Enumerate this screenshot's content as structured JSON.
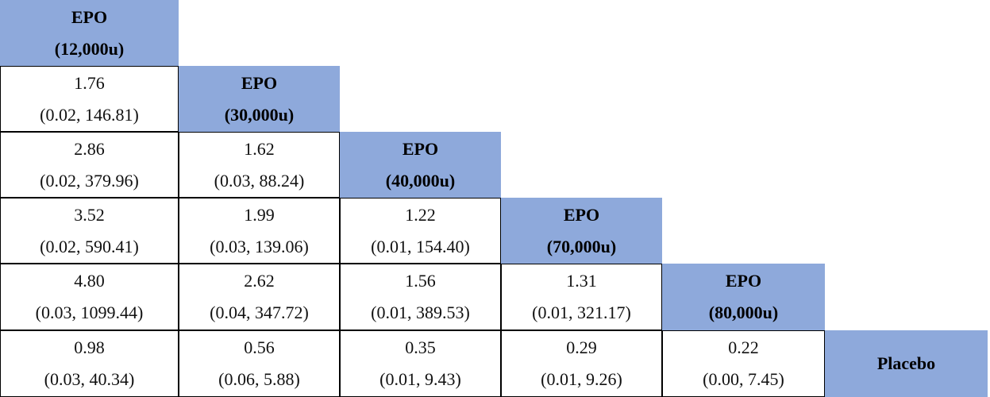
{
  "colors": {
    "header_bg": "#8ea9db",
    "border": "#000000",
    "cell_bg": "#ffffff"
  },
  "chart_data": {
    "type": "table",
    "treatments": [
      {
        "line1": "EPO",
        "line2": "(12,000u)"
      },
      {
        "line1": "EPO",
        "line2": "(30,000u)"
      },
      {
        "line1": "EPO",
        "line2": "(40,000u)"
      },
      {
        "line1": "EPO",
        "line2": "(70,000u)"
      },
      {
        "line1": "EPO",
        "line2": "(80,000u)"
      },
      {
        "line1": "Placebo",
        "line2": ""
      }
    ],
    "cells": [
      [],
      [
        {
          "estimate": "1.76",
          "ci": "(0.02, 146.81)"
        }
      ],
      [
        {
          "estimate": "2.86",
          "ci": "(0.02, 379.96)"
        },
        {
          "estimate": "1.62",
          "ci": "(0.03, 88.24)"
        }
      ],
      [
        {
          "estimate": "3.52",
          "ci": "(0.02, 590.41)"
        },
        {
          "estimate": "1.99",
          "ci": "(0.03, 139.06)"
        },
        {
          "estimate": "1.22",
          "ci": "(0.01, 154.40)"
        }
      ],
      [
        {
          "estimate": "4.80",
          "ci": "(0.03, 1099.44)"
        },
        {
          "estimate": "2.62",
          "ci": "(0.04, 347.72)"
        },
        {
          "estimate": "1.56",
          "ci": "(0.01, 389.53)"
        },
        {
          "estimate": "1.31",
          "ci": "(0.01, 321.17)"
        }
      ],
      [
        {
          "estimate": "0.98",
          "ci": "(0.03, 40.34)"
        },
        {
          "estimate": "0.56",
          "ci": "(0.06, 5.88)"
        },
        {
          "estimate": "0.35",
          "ci": "(0.01, 9.43)"
        },
        {
          "estimate": "0.29",
          "ci": "(0.01, 9.26)"
        },
        {
          "estimate": "0.22",
          "ci": "(0.00, 7.45)"
        }
      ]
    ]
  }
}
